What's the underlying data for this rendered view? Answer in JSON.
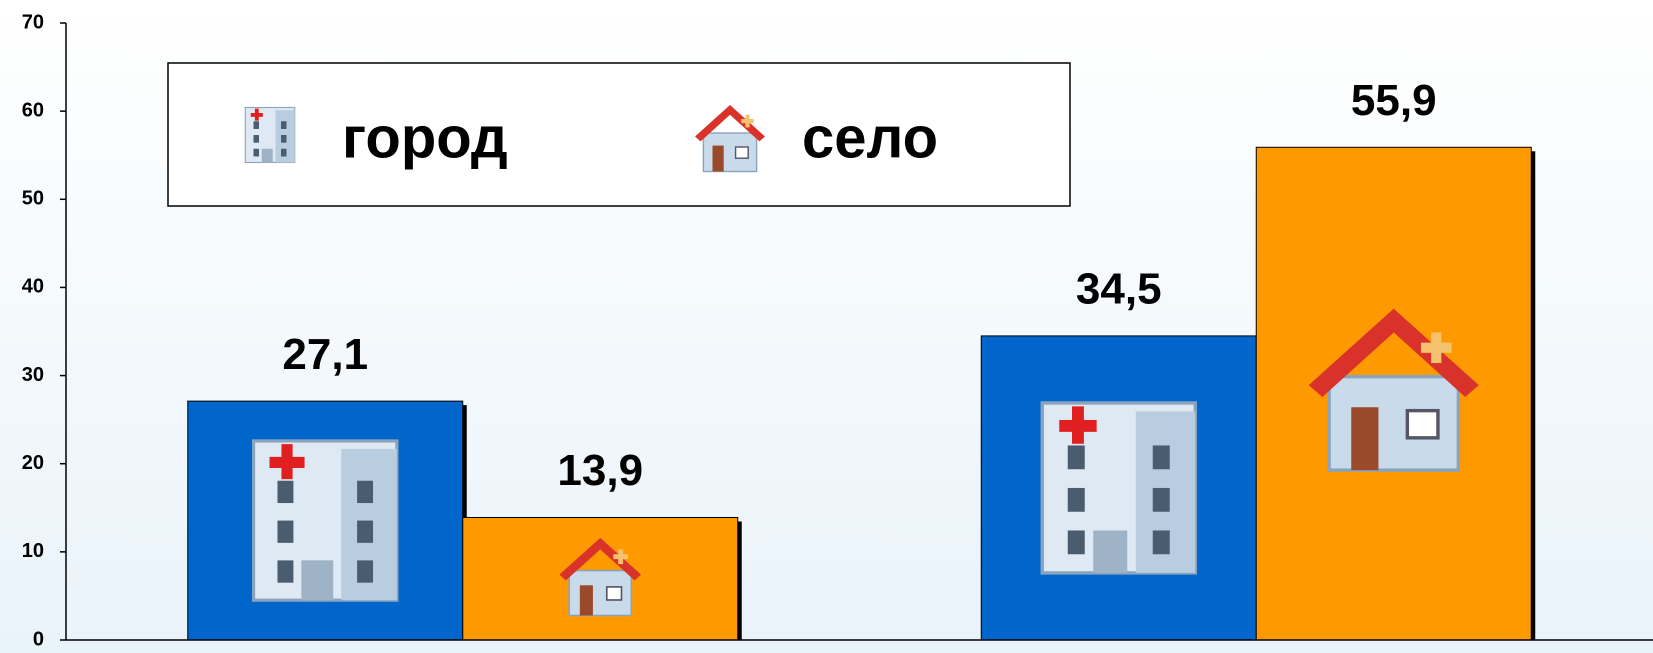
{
  "chart_data": {
    "type": "bar",
    "categories": [
      null,
      null
    ],
    "series": [
      {
        "name": "город",
        "color": "#0066cc",
        "values": [
          27.1,
          34.5
        ],
        "value_labels": [
          "27,1",
          "34,5"
        ]
      },
      {
        "name": "село",
        "color": "#ff9900",
        "values": [
          13.9,
          55.9
        ],
        "value_labels": [
          "13,9",
          "55,9"
        ]
      }
    ],
    "ylim": [
      0,
      70
    ],
    "yticks": [
      0,
      10,
      20,
      30,
      40,
      50,
      60,
      70
    ],
    "grid": false
  }
}
